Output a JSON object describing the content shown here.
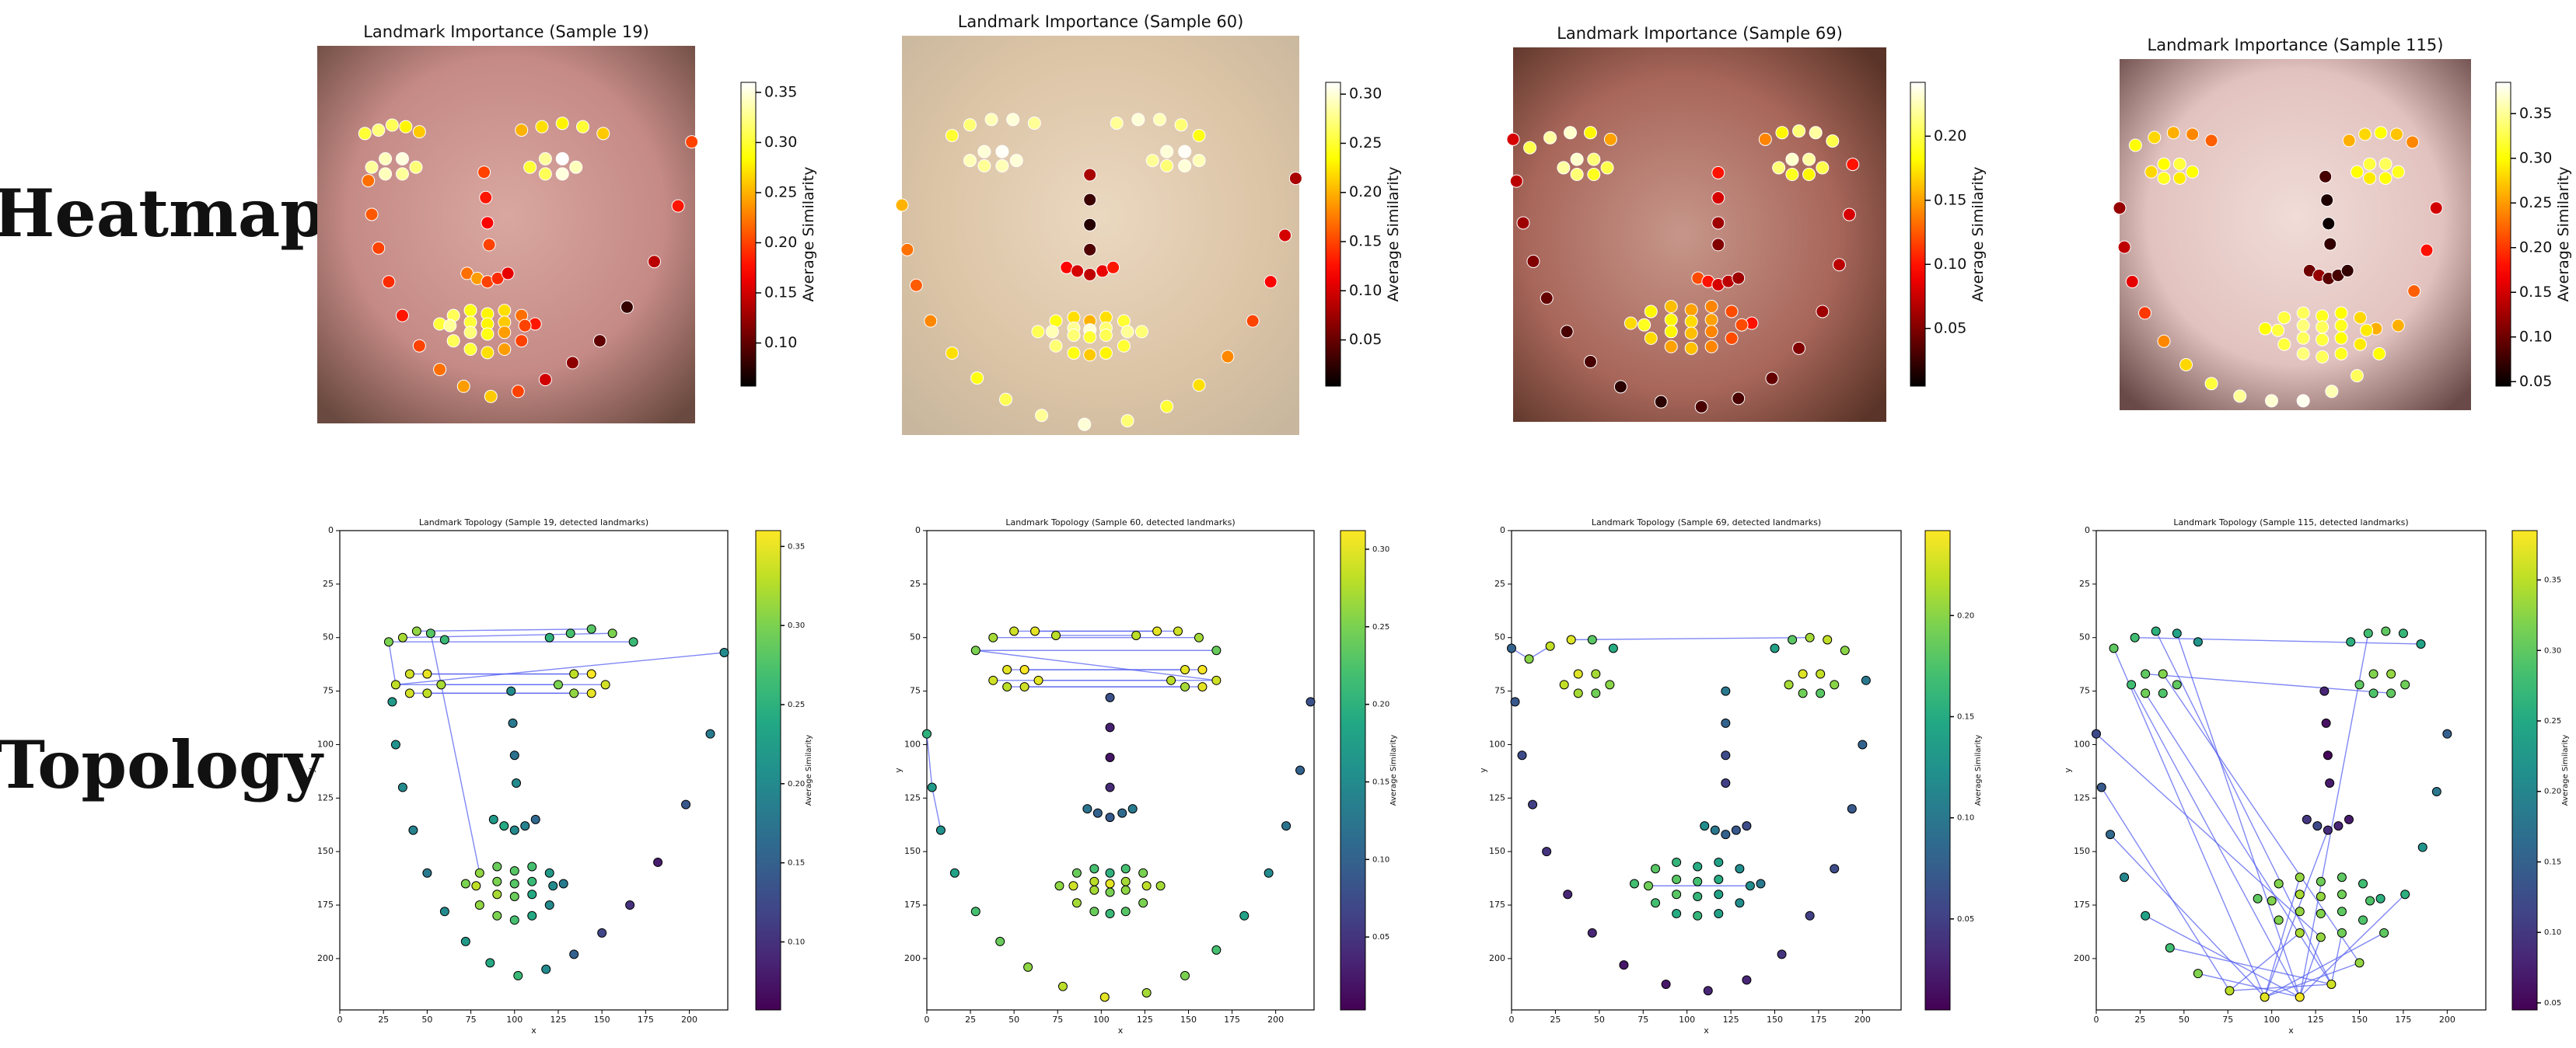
{
  "row_labels": [
    "Heatmap",
    "Topology"
  ],
  "chart_data": [
    {
      "type": "scatter",
      "title": "Landmark Importance (Sample 19)",
      "topology_title": "Landmark Topology (Sample 19, detected landmarks)",
      "x_label": "x",
      "y_label": "y",
      "colorbar_label": "Average Similarity",
      "x": [
        30,
        32,
        36,
        42,
        50,
        60,
        72,
        86,
        102,
        118,
        134,
        150,
        166,
        182,
        198,
        212,
        220,
        28,
        36,
        44,
        52,
        60,
        120,
        132,
        144,
        156,
        168,
        98,
        99,
        100,
        101,
        88,
        94,
        100,
        106,
        112,
        32,
        40,
        50,
        58,
        50,
        40,
        125,
        134,
        144,
        152,
        144,
        134,
        72,
        80,
        90,
        100,
        110,
        120,
        128,
        120,
        110,
        100,
        90,
        80,
        78,
        90,
        100,
        110,
        122,
        110,
        100,
        90
      ],
      "y": [
        80,
        100,
        120,
        140,
        160,
        178,
        192,
        202,
        208,
        205,
        198,
        188,
        175,
        155,
        128,
        95,
        57,
        52,
        50,
        47,
        48,
        51,
        50,
        48,
        46,
        48,
        52,
        75,
        90,
        105,
        118,
        135,
        138,
        140,
        138,
        135,
        72,
        67,
        67,
        72,
        76,
        76,
        72,
        67,
        67,
        72,
        76,
        76,
        165,
        160,
        157,
        159,
        157,
        160,
        165,
        175,
        180,
        182,
        180,
        175,
        166,
        164,
        165,
        164,
        166,
        170,
        171,
        170
      ],
      "values": [
        0.22,
        0.21,
        0.2,
        0.19,
        0.18,
        0.2,
        0.22,
        0.24,
        0.26,
        0.2,
        0.15,
        0.12,
        0.1,
        0.08,
        0.14,
        0.18,
        0.2,
        0.3,
        0.32,
        0.31,
        0.28,
        0.26,
        0.25,
        0.27,
        0.28,
        0.3,
        0.26,
        0.2,
        0.18,
        0.17,
        0.2,
        0.22,
        0.24,
        0.2,
        0.19,
        0.16,
        0.33,
        0.34,
        0.35,
        0.32,
        0.33,
        0.34,
        0.3,
        0.33,
        0.36,
        0.34,
        0.35,
        0.31,
        0.3,
        0.31,
        0.29,
        0.28,
        0.27,
        0.22,
        0.18,
        0.2,
        0.24,
        0.27,
        0.3,
        0.31,
        0.33,
        0.3,
        0.28,
        0.26,
        0.2,
        0.24,
        0.29,
        0.32
      ],
      "edges": [
        [
          17,
          26
        ],
        [
          18,
          25
        ],
        [
          19,
          24
        ],
        [
          36,
          45
        ],
        [
          37,
          44
        ],
        [
          38,
          43
        ],
        [
          39,
          42
        ],
        [
          40,
          47
        ],
        [
          41,
          46
        ],
        [
          36,
          16
        ],
        [
          20,
          49
        ],
        [
          17,
          36
        ]
      ],
      "edge_color": "#5560f0",
      "clim": [
        0.057,
        0.36
      ],
      "cticks": [
        {
          "value": 0.1,
          "label": "0.10"
        },
        0.15,
        {
          "value": 0.2,
          "label": "0.20"
        },
        0.25,
        {
          "value": 0.3,
          "label": "0.30"
        },
        0.35
      ],
      "xlim": [
        0,
        222
      ],
      "ylim": [
        0,
        224
      ],
      "y_inverted": true,
      "xticks": [
        0,
        25,
        50,
        75,
        100,
        125,
        150,
        175,
        200
      ],
      "yticks": [
        0,
        25,
        50,
        75,
        100,
        125,
        150,
        175,
        200
      ],
      "heat_colormap": "hot",
      "topo_colormap": "viridis"
    },
    {
      "type": "scatter",
      "title": "Landmark Importance (Sample 60)",
      "topology_title": "Landmark Topology (Sample 60, detected landmarks)",
      "x_label": "x",
      "y_label": "y",
      "colorbar_label": "Average Similarity",
      "x": [
        0,
        3,
        8,
        16,
        28,
        42,
        58,
        78,
        102,
        126,
        148,
        166,
        182,
        196,
        206,
        214,
        220,
        28,
        38,
        50,
        62,
        74,
        120,
        132,
        144,
        156,
        166,
        105,
        105,
        105,
        105,
        92,
        98,
        105,
        112,
        118,
        38,
        46,
        56,
        64,
        56,
        46,
        140,
        148,
        158,
        166,
        158,
        148,
        76,
        86,
        96,
        105,
        114,
        124,
        134,
        124,
        114,
        105,
        96,
        86,
        84,
        96,
        105,
        114,
        126,
        114,
        105,
        96
      ],
      "y": [
        95,
        120,
        140,
        160,
        178,
        192,
        204,
        213,
        218,
        216,
        208,
        196,
        180,
        160,
        138,
        112,
        80,
        56,
        50,
        47,
        47,
        49,
        49,
        47,
        47,
        50,
        56,
        78,
        92,
        106,
        120,
        130,
        132,
        134,
        132,
        130,
        70,
        65,
        65,
        70,
        73,
        73,
        70,
        65,
        65,
        70,
        73,
        73,
        166,
        160,
        158,
        160,
        158,
        160,
        166,
        174,
        178,
        179,
        178,
        174,
        166,
        164,
        165,
        164,
        166,
        168,
        169,
        168
      ],
      "values": [
        0.2,
        0.17,
        0.16,
        0.18,
        0.22,
        0.24,
        0.26,
        0.28,
        0.3,
        0.27,
        0.25,
        0.22,
        0.18,
        0.15,
        0.12,
        0.1,
        0.08,
        0.25,
        0.27,
        0.29,
        0.3,
        0.28,
        0.28,
        0.3,
        0.29,
        0.27,
        0.24,
        0.08,
        0.03,
        0.02,
        0.04,
        0.12,
        0.1,
        0.09,
        0.11,
        0.13,
        0.29,
        0.3,
        0.31,
        0.3,
        0.29,
        0.28,
        0.28,
        0.3,
        0.31,
        0.29,
        0.3,
        0.27,
        0.26,
        0.24,
        0.22,
        0.2,
        0.22,
        0.25,
        0.27,
        0.25,
        0.23,
        0.21,
        0.24,
        0.27,
        0.29,
        0.28,
        0.3,
        0.27,
        0.28,
        0.26,
        0.25,
        0.27
      ],
      "edges": [
        [
          17,
          26
        ],
        [
          18,
          25
        ],
        [
          19,
          24
        ],
        [
          20,
          23
        ],
        [
          36,
          45
        ],
        [
          37,
          44
        ],
        [
          38,
          43
        ],
        [
          39,
          42
        ],
        [
          40,
          47
        ],
        [
          41,
          46
        ],
        [
          17,
          45
        ],
        [
          21,
          22
        ],
        [
          0,
          1
        ],
        [
          1,
          2
        ]
      ],
      "edge_color": "#5560f0",
      "clim": [
        0.003,
        0.312
      ],
      "cticks": [
        0.05,
        {
          "value": 0.1,
          "label": "0.10"
        },
        0.15,
        {
          "value": 0.2,
          "label": "0.20"
        },
        0.25,
        {
          "value": 0.3,
          "label": "0.30"
        }
      ],
      "xlim": [
        0,
        222
      ],
      "ylim": [
        0,
        224
      ],
      "y_inverted": true,
      "xticks": [
        0,
        25,
        50,
        75,
        100,
        125,
        150,
        175,
        200
      ],
      "yticks": [
        0,
        25,
        50,
        75,
        100,
        125,
        150,
        175,
        200
      ],
      "heat_colormap": "hot",
      "topo_colormap": "viridis"
    },
    {
      "type": "scatter",
      "title": "Landmark Importance (Sample 69)",
      "topology_title": "Landmark Topology (Sample 69, detected landmarks)",
      "x_label": "x",
      "y_label": "y",
      "colorbar_label": "Average Similarity",
      "x": [
        0,
        2,
        6,
        12,
        20,
        32,
        46,
        64,
        88,
        112,
        134,
        154,
        170,
        184,
        194,
        200,
        202,
        10,
        22,
        34,
        46,
        58,
        150,
        160,
        170,
        180,
        190,
        122,
        122,
        122,
        122,
        110,
        116,
        122,
        128,
        134,
        30,
        38,
        48,
        56,
        48,
        38,
        158,
        166,
        176,
        184,
        176,
        166,
        70,
        82,
        94,
        106,
        118,
        130,
        142,
        130,
        118,
        106,
        94,
        82,
        78,
        94,
        106,
        118,
        136,
        118,
        106,
        94
      ],
      "y": [
        55,
        80,
        105,
        128,
        150,
        170,
        188,
        203,
        212,
        215,
        210,
        198,
        180,
        158,
        130,
        100,
        70,
        60,
        54,
        51,
        51,
        55,
        55,
        51,
        50,
        51,
        56,
        75,
        90,
        105,
        118,
        138,
        140,
        142,
        140,
        138,
        72,
        67,
        67,
        72,
        76,
        76,
        72,
        67,
        67,
        72,
        76,
        76,
        165,
        158,
        155,
        157,
        155,
        158,
        165,
        174,
        179,
        180,
        179,
        174,
        166,
        163,
        164,
        163,
        166,
        170,
        171,
        170
      ],
      "values": [
        0.08,
        0.07,
        0.06,
        0.05,
        0.04,
        0.03,
        0.03,
        0.02,
        0.02,
        0.03,
        0.03,
        0.04,
        0.05,
        0.06,
        0.07,
        0.08,
        0.1,
        0.2,
        0.22,
        0.23,
        0.18,
        0.15,
        0.14,
        0.18,
        0.21,
        0.22,
        0.2,
        0.1,
        0.08,
        0.06,
        0.05,
        0.12,
        0.1,
        0.08,
        0.07,
        0.06,
        0.22,
        0.23,
        0.21,
        0.2,
        0.19,
        0.21,
        0.21,
        0.23,
        0.22,
        0.2,
        0.18,
        0.19,
        0.17,
        0.18,
        0.16,
        0.15,
        0.14,
        0.12,
        0.1,
        0.12,
        0.14,
        0.16,
        0.15,
        0.17,
        0.19,
        0.18,
        0.17,
        0.15,
        0.12,
        0.14,
        0.16,
        0.18
      ],
      "edges": [
        [
          19,
          24
        ],
        [
          0,
          17
        ],
        [
          60,
          64
        ],
        [
          17,
          18
        ]
      ],
      "edge_color": "#5560f0",
      "clim": [
        0.005,
        0.242
      ],
      "cticks": [
        0.05,
        {
          "value": 0.1,
          "label": "0.10"
        },
        0.15,
        {
          "value": 0.2,
          "label": "0.20"
        }
      ],
      "xlim": [
        0,
        222
      ],
      "ylim": [
        0,
        224
      ],
      "y_inverted": true,
      "xticks": [
        0,
        25,
        50,
        75,
        100,
        125,
        150,
        175,
        200
      ],
      "yticks": [
        0,
        25,
        50,
        75,
        100,
        125,
        150,
        175,
        200
      ],
      "heat_colormap": "hot",
      "topo_colormap": "viridis"
    },
    {
      "type": "scatter",
      "title": "Landmark Importance (Sample 115)",
      "topology_title": "Landmark Topology (Sample 115, detected landmarks)",
      "x_label": "x",
      "y_label": "y",
      "colorbar_label": "Average Similarity",
      "x": [
        0,
        3,
        8,
        16,
        28,
        42,
        58,
        76,
        96,
        116,
        134,
        150,
        164,
        176,
        186,
        194,
        200,
        10,
        22,
        34,
        46,
        58,
        145,
        155,
        165,
        175,
        185,
        130,
        131,
        132,
        133,
        120,
        126,
        132,
        138,
        144,
        20,
        28,
        38,
        46,
        38,
        28,
        150,
        158,
        168,
        176,
        168,
        158,
        92,
        104,
        116,
        128,
        140,
        152,
        162,
        152,
        140,
        128,
        116,
        104,
        100,
        116,
        128,
        140,
        156,
        140,
        128,
        116
      ],
      "y": [
        95,
        120,
        142,
        162,
        180,
        195,
        207,
        215,
        218,
        218,
        212,
        202,
        188,
        170,
        148,
        122,
        95,
        55,
        50,
        47,
        48,
        52,
        52,
        48,
        47,
        48,
        53,
        75,
        90,
        105,
        118,
        135,
        138,
        140,
        138,
        135,
        72,
        67,
        67,
        72,
        76,
        76,
        72,
        67,
        67,
        72,
        76,
        76,
        172,
        165,
        162,
        164,
        162,
        165,
        172,
        182,
        188,
        190,
        188,
        182,
        173,
        170,
        171,
        170,
        173,
        178,
        179,
        178
      ],
      "values": [
        0.12,
        0.14,
        0.16,
        0.2,
        0.24,
        0.28,
        0.32,
        0.35,
        0.37,
        0.38,
        0.36,
        0.33,
        0.3,
        0.26,
        0.22,
        0.18,
        0.15,
        0.3,
        0.28,
        0.26,
        0.24,
        0.22,
        0.26,
        0.28,
        0.3,
        0.27,
        0.24,
        0.08,
        0.06,
        0.05,
        0.07,
        0.1,
        0.12,
        0.09,
        0.08,
        0.07,
        0.28,
        0.3,
        0.32,
        0.3,
        0.29,
        0.31,
        0.3,
        0.32,
        0.33,
        0.31,
        0.3,
        0.29,
        0.3,
        0.32,
        0.33,
        0.31,
        0.3,
        0.28,
        0.26,
        0.29,
        0.31,
        0.33,
        0.34,
        0.32,
        0.32,
        0.34,
        0.33,
        0.31,
        0.29,
        0.3,
        0.32,
        0.33
      ],
      "edges": [
        [
          7,
          10
        ],
        [
          8,
          11
        ],
        [
          6,
          9
        ],
        [
          5,
          10
        ],
        [
          4,
          9
        ],
        [
          0,
          57
        ],
        [
          17,
          8
        ],
        [
          36,
          9
        ],
        [
          18,
          26
        ],
        [
          37,
          46
        ],
        [
          50,
          8
        ],
        [
          57,
          9
        ],
        [
          33,
          8
        ],
        [
          19,
          10
        ],
        [
          38,
          11
        ],
        [
          20,
          9
        ],
        [
          1,
          7
        ],
        [
          2,
          8
        ],
        [
          8,
          12
        ],
        [
          9,
          13
        ],
        [
          7,
          58
        ],
        [
          10,
          56
        ],
        [
          41,
          10
        ],
        [
          23,
          9
        ]
      ],
      "edge_color": "#5560f0",
      "clim": [
        0.045,
        0.385
      ],
      "cticks": [
        0.05,
        {
          "value": 0.1,
          "label": "0.10"
        },
        0.15,
        {
          "value": 0.2,
          "label": "0.20"
        },
        0.25,
        {
          "value": 0.3,
          "label": "0.30"
        },
        0.35
      ],
      "xlim": [
        0,
        222
      ],
      "ylim": [
        0,
        224
      ],
      "y_inverted": true,
      "xticks": [
        0,
        25,
        50,
        75,
        100,
        125,
        150,
        175,
        200
      ],
      "yticks": [
        0,
        25,
        50,
        75,
        100,
        125,
        150,
        175,
        200
      ],
      "heat_colormap": "hot",
      "topo_colormap": "viridis"
    }
  ]
}
